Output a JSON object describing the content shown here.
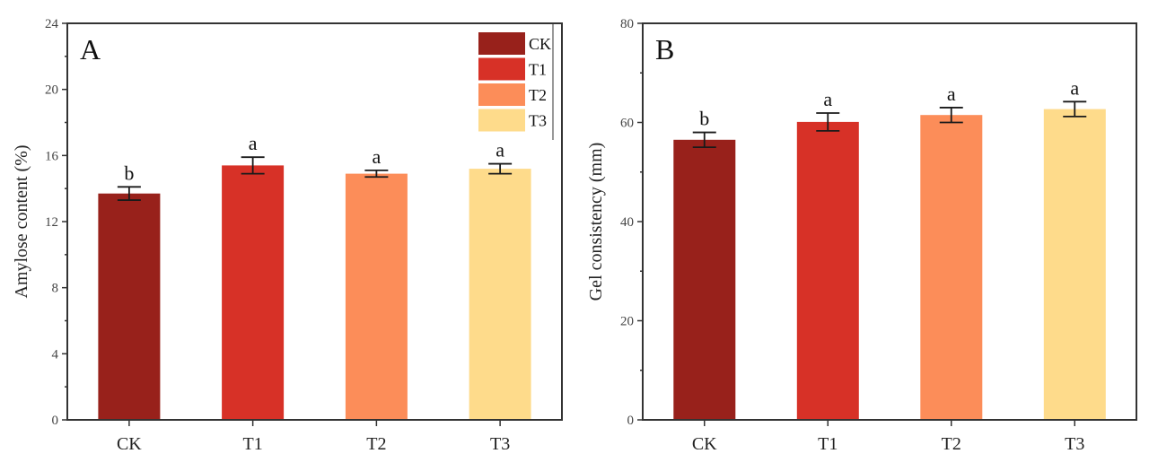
{
  "colors": {
    "CK": "#98211B",
    "T1": "#D73127",
    "T2": "#FC8D59",
    "T3": "#FEDB8B"
  },
  "chart_data": [
    {
      "type": "bar",
      "panel": "A",
      "title": "",
      "categories": [
        "CK",
        "T1",
        "T2",
        "T3"
      ],
      "values": [
        13.7,
        15.4,
        14.9,
        15.2
      ],
      "errors": [
        0.4,
        0.5,
        0.2,
        0.3
      ],
      "significance": [
        "b",
        "a",
        "a",
        "a"
      ],
      "xlabel": "",
      "ylabel": "Amylose content (%)",
      "ylim": [
        0,
        24
      ],
      "yticks": [
        0,
        4,
        8,
        12,
        16,
        20,
        24
      ],
      "yminor_step": 2,
      "grid": false,
      "legend": {
        "position": "top-right",
        "entries": [
          "CK",
          "T1",
          "T2",
          "T3"
        ]
      }
    },
    {
      "type": "bar",
      "panel": "B",
      "title": "",
      "categories": [
        "CK",
        "T1",
        "T2",
        "T3"
      ],
      "values": [
        56.5,
        60.1,
        61.5,
        62.7
      ],
      "errors": [
        1.5,
        1.8,
        1.5,
        1.5
      ],
      "significance": [
        "b",
        "a",
        "a",
        "a"
      ],
      "xlabel": "",
      "ylabel": "Gel consistency (mm)",
      "ylim": [
        0,
        80
      ],
      "yticks": [
        0,
        20,
        40,
        60,
        80
      ],
      "yminor_step": 10,
      "grid": false,
      "legend": null
    }
  ]
}
